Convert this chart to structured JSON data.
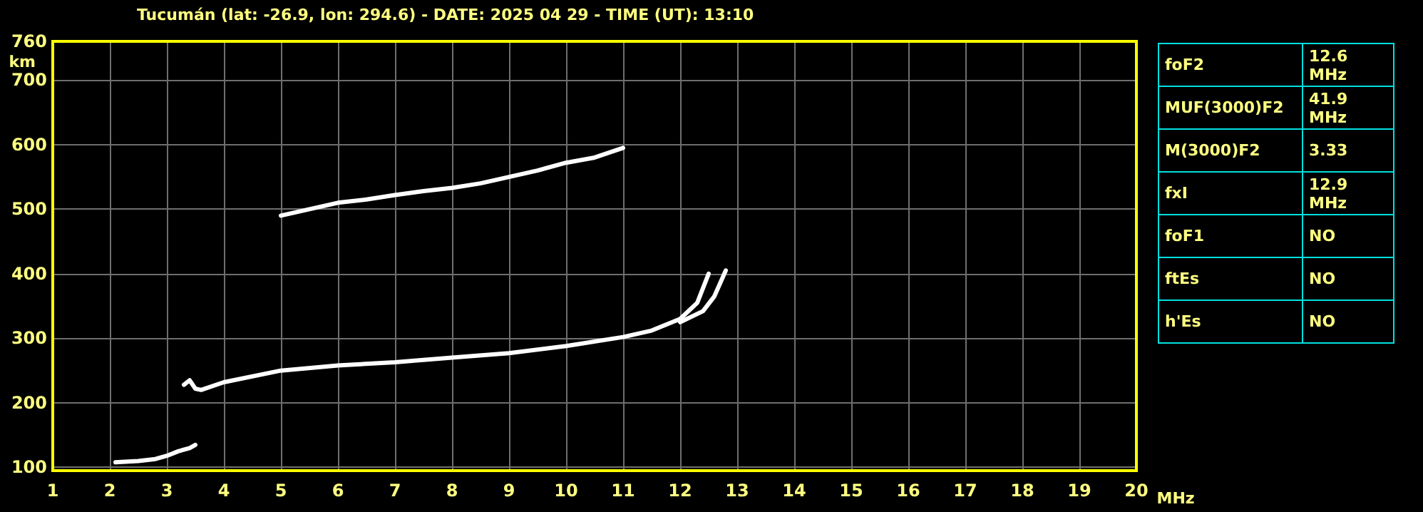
{
  "chart_data": [
    {
      "type": "line",
      "title": "Tucumán (lat: -26.9, lon: 294.6) - DATE: 2025 04 29 - TIME (UT): 13:10",
      "xlabel": "MHz",
      "ylabel": "km",
      "series": [
        {
          "color": "#ffffff",
          "x": [
            2.1,
            2.5,
            2.8,
            3.0,
            3.2,
            3.4,
            3.5
          ],
          "values": [
            108,
            110,
            113,
            118,
            125,
            130,
            135
          ]
        },
        {
          "color": "#ffffff",
          "x": [
            3.3,
            3.4,
            3.5,
            3.6,
            4,
            5,
            6,
            7,
            8,
            9,
            10,
            11,
            11.5,
            12,
            12.3,
            12.5
          ],
          "values": [
            228,
            235,
            222,
            220,
            232,
            250,
            258,
            263,
            270,
            277,
            288,
            302,
            312,
            330,
            355,
            400
          ]
        },
        {
          "color": "#ffffff",
          "x": [
            12,
            12.4,
            12.6,
            12.8
          ],
          "values": [
            325,
            342,
            365,
            405
          ]
        },
        {
          "color": "#ffffff",
          "x": [
            5,
            5.5,
            6,
            6.5,
            7,
            7.5,
            8,
            8.5,
            9,
            9.5,
            10,
            10.5,
            11
          ],
          "values": [
            490,
            500,
            510,
            515,
            522,
            528,
            533,
            540,
            550,
            560,
            572,
            580,
            595
          ]
        }
      ],
      "xlim": [
        1,
        20
      ],
      "xticks": [
        1,
        2,
        3,
        4,
        5,
        6,
        7,
        8,
        9,
        10,
        11,
        12,
        13,
        14,
        15,
        16,
        17,
        18,
        19,
        20
      ],
      "ylim": [
        95,
        760
      ],
      "yticks": [
        100,
        200,
        300,
        400,
        500,
        600,
        700,
        760
      ],
      "grid": true
    },
    {
      "type": "other",
      "categories": [
        "foF2",
        "MUF(3000)F2",
        "M(3000)F2",
        "fxI",
        "foF1",
        "ftEs",
        "h'Es"
      ],
      "value_labels": [
        "12.6 MHz",
        "41.9 MHz",
        "3.33",
        "12.9 MHz",
        "NO",
        "NO",
        "NO"
      ]
    }
  ]
}
